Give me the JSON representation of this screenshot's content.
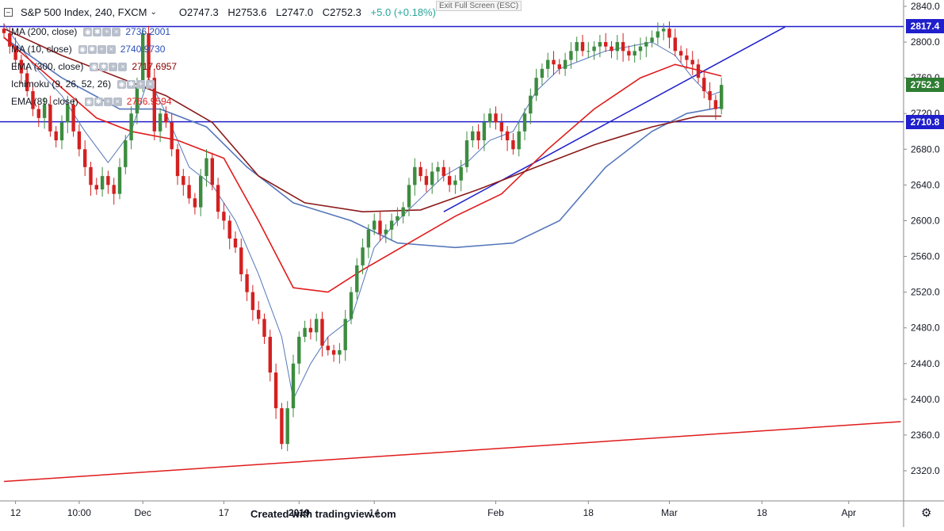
{
  "header": {
    "symbol_line": "S&P 500 Index, 240, FXCM",
    "open": "O2747.3",
    "high": "H2753.6",
    "low": "L2747.0",
    "close": "C2752.3",
    "change": "+5.0 (+0.18%)",
    "exit_fullscreen": "Exit Full Screen (ESC)"
  },
  "legend": [
    {
      "label": "MA (200, close)",
      "value": "2736.2001",
      "color": "#2a4fb8"
    },
    {
      "label": "MA (10, close)",
      "value": "2740.9730",
      "color": "#2a4fb8"
    },
    {
      "label": "EMA (300, close)",
      "value": "2717.6957",
      "color": "#8b0000"
    },
    {
      "label": "Ichimoku (9, 26, 52, 26)",
      "value": "",
      "color": "#2a4fb8"
    },
    {
      "label": "EMA (89, close)",
      "value": "2766.9594",
      "color": "#e02020"
    }
  ],
  "price_tags": [
    {
      "value": "2817.4",
      "color": "#1f1fcc"
    },
    {
      "value": "2752.3",
      "color": "#2f7d32"
    },
    {
      "value": "2710.8",
      "color": "#1f1fcc"
    }
  ],
  "footer": "Created with tradingview.com",
  "colors": {
    "up": "#3d8c40",
    "down": "#d42020",
    "ma_blue": "#5577bb",
    "ema_red": "#e01b1b",
    "ema_dark": "#8b1a1a",
    "line_blue": "#1f1fcc"
  },
  "icons": {
    "settings": "gear-icon",
    "collapse": "minus-box-icon"
  },
  "chart_data": {
    "type": "candlestick",
    "title": "S&P 500 Index, 240, FXCM",
    "y_ticks": [
      2840.0,
      2800.0,
      2760.0,
      2720.0,
      2680.0,
      2640.0,
      2600.0,
      2560.0,
      2520.0,
      2480.0,
      2440.0,
      2400.0,
      2360.0,
      2320.0
    ],
    "ylim": [
      2310,
      2845
    ],
    "x_ticks": [
      {
        "label": "12",
        "bar": 2
      },
      {
        "label": "10:00",
        "bar": 13
      },
      {
        "label": "Dec",
        "bar": 24
      },
      {
        "label": "17",
        "bar": 38
      },
      {
        "label": "2019",
        "bar": 51
      },
      {
        "label": "14",
        "bar": 64
      },
      {
        "label": "Feb",
        "bar": 85
      },
      {
        "label": "18",
        "bar": 101
      },
      {
        "label": "Mar",
        "bar": 115
      },
      {
        "label": "18",
        "bar": 131
      },
      {
        "label": "Apr",
        "bar": 146
      }
    ],
    "bar_count": 155,
    "closes": [
      2810,
      2795,
      2780,
      2765,
      2745,
      2725,
      2715,
      2730,
      2700,
      2690,
      2710,
      2730,
      2700,
      2680,
      2660,
      2640,
      2635,
      2650,
      2640,
      2630,
      2660,
      2690,
      2720,
      2750,
      2810,
      2760,
      2700,
      2720,
      2710,
      2680,
      2650,
      2640,
      2625,
      2615,
      2650,
      2670,
      2640,
      2610,
      2600,
      2580,
      2570,
      2540,
      2520,
      2500,
      2490,
      2470,
      2430,
      2390,
      2350,
      2390,
      2440,
      2470,
      2480,
      2475,
      2490,
      2460,
      2455,
      2450,
      2455,
      2490,
      2520,
      2550,
      2570,
      2590,
      2600,
      2585,
      2590,
      2600,
      2605,
      2615,
      2640,
      2660,
      2650,
      2640,
      2655,
      2660,
      2650,
      2640,
      2645,
      2660,
      2690,
      2700,
      2690,
      2710,
      2720,
      2710,
      2700,
      2690,
      2680,
      2700,
      2720,
      2740,
      2760,
      2770,
      2780,
      2775,
      2770,
      2780,
      2790,
      2800,
      2790,
      2790,
      2795,
      2800,
      2795,
      2790,
      2800,
      2790,
      2785,
      2790,
      2795,
      2800,
      2805,
      2812,
      2815,
      2805,
      2790,
      2785,
      2780,
      2775,
      2760,
      2745,
      2735,
      2725,
      2752
    ],
    "series": [
      {
        "name": "MA (10, close)",
        "color": "#5577bb",
        "points": [
          [
            0,
            2820
          ],
          [
            5,
            2775
          ],
          [
            10,
            2740
          ],
          [
            14,
            2700
          ],
          [
            18,
            2665
          ],
          [
            22,
            2700
          ],
          [
            25,
            2760
          ],
          [
            28,
            2720
          ],
          [
            32,
            2660
          ],
          [
            36,
            2640
          ],
          [
            40,
            2600
          ],
          [
            44,
            2540
          ],
          [
            48,
            2470
          ],
          [
            50,
            2400
          ],
          [
            53,
            2440
          ],
          [
            56,
            2470
          ],
          [
            60,
            2490
          ],
          [
            64,
            2570
          ],
          [
            68,
            2600
          ],
          [
            72,
            2625
          ],
          [
            76,
            2650
          ],
          [
            80,
            2665
          ],
          [
            84,
            2690
          ],
          [
            88,
            2700
          ],
          [
            92,
            2745
          ],
          [
            96,
            2770
          ],
          [
            100,
            2780
          ],
          [
            104,
            2790
          ],
          [
            108,
            2795
          ],
          [
            112,
            2800
          ],
          [
            116,
            2785
          ],
          [
            119,
            2760
          ],
          [
            122,
            2740
          ],
          [
            124,
            2745
          ]
        ]
      },
      {
        "name": "MA (200, close)",
        "color": "#5577bb",
        "points": [
          [
            0,
            2805
          ],
          [
            10,
            2760
          ],
          [
            20,
            2725
          ],
          [
            27,
            2725
          ],
          [
            35,
            2705
          ],
          [
            42,
            2660
          ],
          [
            50,
            2620
          ],
          [
            60,
            2600
          ],
          [
            68,
            2575
          ],
          [
            78,
            2570
          ],
          [
            88,
            2575
          ],
          [
            96,
            2600
          ],
          [
            104,
            2660
          ],
          [
            112,
            2700
          ],
          [
            118,
            2720
          ],
          [
            124,
            2727
          ]
        ]
      },
      {
        "name": "EMA (89, close)",
        "color": "#e01b1b",
        "points": [
          [
            0,
            2805
          ],
          [
            8,
            2760
          ],
          [
            16,
            2715
          ],
          [
            22,
            2700
          ],
          [
            30,
            2690
          ],
          [
            38,
            2670
          ],
          [
            44,
            2600
          ],
          [
            50,
            2525
          ],
          [
            56,
            2520
          ],
          [
            62,
            2545
          ],
          [
            70,
            2575
          ],
          [
            78,
            2605
          ],
          [
            86,
            2630
          ],
          [
            94,
            2680
          ],
          [
            102,
            2725
          ],
          [
            110,
            2760
          ],
          [
            116,
            2775
          ],
          [
            124,
            2762
          ]
        ]
      },
      {
        "name": "EMA (300, close)",
        "color": "#8b1a1a",
        "points": [
          [
            0,
            2815
          ],
          [
            10,
            2785
          ],
          [
            20,
            2760
          ],
          [
            28,
            2740
          ],
          [
            36,
            2710
          ],
          [
            44,
            2650
          ],
          [
            52,
            2620
          ],
          [
            62,
            2610
          ],
          [
            72,
            2612
          ],
          [
            82,
            2635
          ],
          [
            92,
            2660
          ],
          [
            102,
            2685
          ],
          [
            112,
            2705
          ],
          [
            120,
            2717
          ],
          [
            124,
            2717
          ]
        ]
      }
    ],
    "annotations": [
      {
        "type": "horizontal",
        "value": 2817.4,
        "color": "#1f1fcc"
      },
      {
        "type": "horizontal",
        "value": 2710.8,
        "color": "#1f1fcc"
      },
      {
        "type": "trendline",
        "from": [
          76,
          2610
        ],
        "to": [
          135,
          2817
        ],
        "color": "#1f1fcc"
      },
      {
        "type": "trendline",
        "from": [
          0,
          2308
        ],
        "to": [
          155,
          2375
        ],
        "color": "#e01b1b"
      }
    ]
  }
}
